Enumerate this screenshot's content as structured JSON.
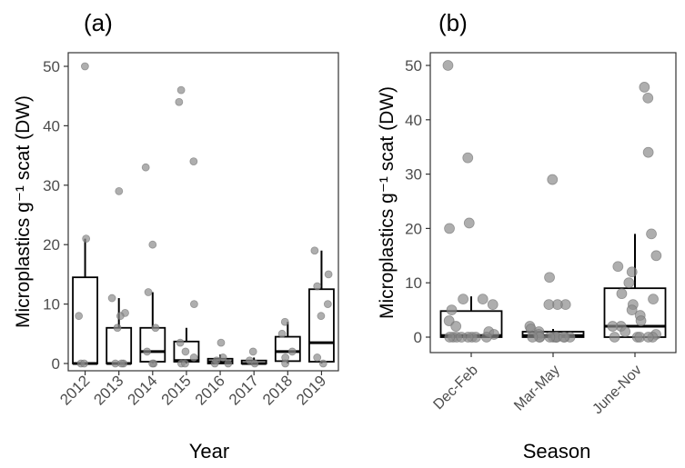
{
  "chart_data": [
    {
      "type": "box",
      "panel_label": "(a)",
      "xlabel": "Year",
      "ylabel": "Microplastics g⁻¹ scat (DW)",
      "ylim": [
        -2,
        53
      ],
      "yticks": [
        0,
        10,
        20,
        30,
        40,
        50
      ],
      "categories": [
        "2012",
        "2013",
        "2014",
        "2015",
        "2016",
        "2017",
        "2018",
        "2019"
      ],
      "boxes": [
        {
          "q1": 0,
          "median": 0,
          "q3": 14.5,
          "whisker_low": 0,
          "whisker_high": 21
        },
        {
          "q1": 0,
          "median": 0,
          "q3": 6,
          "whisker_low": 0,
          "whisker_high": 11
        },
        {
          "q1": 0.3,
          "median": 2,
          "q3": 6,
          "whisker_low": 0,
          "whisker_high": 12
        },
        {
          "q1": 0.3,
          "median": 0.5,
          "q3": 3.7,
          "whisker_low": 0,
          "whisker_high": 6
        },
        {
          "q1": 0,
          "median": 0.3,
          "q3": 0.8,
          "whisker_low": 0,
          "whisker_high": 1.5
        },
        {
          "q1": 0,
          "median": 0,
          "q3": 0.5,
          "whisker_low": 0,
          "whisker_high": 1
        },
        {
          "q1": 0.4,
          "median": 2,
          "q3": 4.5,
          "whisker_low": 0,
          "whisker_high": 7
        },
        {
          "q1": 0.3,
          "median": 3.5,
          "q3": 12.5,
          "whisker_low": 0,
          "whisker_high": 19
        }
      ],
      "points": [
        {
          "category": "2012",
          "y": 50
        },
        {
          "category": "2012",
          "y": 21
        },
        {
          "category": "2012",
          "y": 8
        },
        {
          "category": "2012",
          "y": 0
        },
        {
          "category": "2012",
          "y": 0
        },
        {
          "category": "2013",
          "y": 29
        },
        {
          "category": "2013",
          "y": 11
        },
        {
          "category": "2013",
          "y": 8.5
        },
        {
          "category": "2013",
          "y": 8
        },
        {
          "category": "2013",
          "y": 6
        },
        {
          "category": "2013",
          "y": 0
        },
        {
          "category": "2013",
          "y": 0
        },
        {
          "category": "2013",
          "y": 0
        },
        {
          "category": "2014",
          "y": 33
        },
        {
          "category": "2014",
          "y": 20
        },
        {
          "category": "2014",
          "y": 12
        },
        {
          "category": "2014",
          "y": 6
        },
        {
          "category": "2014",
          "y": 2
        },
        {
          "category": "2014",
          "y": 0
        },
        {
          "category": "2014",
          "y": 0
        },
        {
          "category": "2015",
          "y": 46
        },
        {
          "category": "2015",
          "y": 44
        },
        {
          "category": "2015",
          "y": 34
        },
        {
          "category": "2015",
          "y": 10
        },
        {
          "category": "2015",
          "y": 3.5
        },
        {
          "category": "2015",
          "y": 2
        },
        {
          "category": "2015",
          "y": 1
        },
        {
          "category": "2015",
          "y": 0
        },
        {
          "category": "2015",
          "y": 0
        },
        {
          "category": "2016",
          "y": 3.5
        },
        {
          "category": "2016",
          "y": 1
        },
        {
          "category": "2016",
          "y": 0.5
        },
        {
          "category": "2016",
          "y": 0
        },
        {
          "category": "2016",
          "y": 0
        },
        {
          "category": "2017",
          "y": 2
        },
        {
          "category": "2017",
          "y": 0.5
        },
        {
          "category": "2017",
          "y": 0
        },
        {
          "category": "2018",
          "y": 7
        },
        {
          "category": "2018",
          "y": 5
        },
        {
          "category": "2018",
          "y": 2
        },
        {
          "category": "2018",
          "y": 1
        },
        {
          "category": "2018",
          "y": 0
        },
        {
          "category": "2019",
          "y": 19
        },
        {
          "category": "2019",
          "y": 15
        },
        {
          "category": "2019",
          "y": 13
        },
        {
          "category": "2019",
          "y": 10
        },
        {
          "category": "2019",
          "y": 8
        },
        {
          "category": "2019",
          "y": 1
        },
        {
          "category": "2019",
          "y": 0
        }
      ]
    },
    {
      "type": "box",
      "panel_label": "(b)",
      "xlabel": "Season",
      "ylabel": "Microplastics g⁻¹ scat (DW)",
      "ylim": [
        -2,
        53
      ],
      "yticks": [
        0,
        10,
        20,
        30,
        40,
        50
      ],
      "categories": [
        "Dec-Feb",
        "Mar-May",
        "June-Nov"
      ],
      "boxes": [
        {
          "q1": 0,
          "median": 0.3,
          "q3": 4.8,
          "whisker_low": 0,
          "whisker_high": 7.5
        },
        {
          "q1": 0,
          "median": 0.3,
          "q3": 1,
          "whisker_low": 0,
          "whisker_high": 1.5
        },
        {
          "q1": 0,
          "median": 2,
          "q3": 9,
          "whisker_low": 0,
          "whisker_high": 19
        }
      ],
      "points": [
        {
          "category": "Dec-Feb",
          "y": 50
        },
        {
          "category": "Dec-Feb",
          "y": 33
        },
        {
          "category": "Dec-Feb",
          "y": 21
        },
        {
          "category": "Dec-Feb",
          "y": 20
        },
        {
          "category": "Dec-Feb",
          "y": 7
        },
        {
          "category": "Dec-Feb",
          "y": 7
        },
        {
          "category": "Dec-Feb",
          "y": 6
        },
        {
          "category": "Dec-Feb",
          "y": 5
        },
        {
          "category": "Dec-Feb",
          "y": 3
        },
        {
          "category": "Dec-Feb",
          "y": 2
        },
        {
          "category": "Dec-Feb",
          "y": 1
        },
        {
          "category": "Dec-Feb",
          "y": 0.5
        },
        {
          "category": "Dec-Feb",
          "y": 0
        },
        {
          "category": "Dec-Feb",
          "y": 0
        },
        {
          "category": "Dec-Feb",
          "y": 0
        },
        {
          "category": "Dec-Feb",
          "y": 0
        },
        {
          "category": "Dec-Feb",
          "y": 0
        },
        {
          "category": "Dec-Feb",
          "y": 0
        },
        {
          "category": "Dec-Feb",
          "y": 0
        },
        {
          "category": "Dec-Feb",
          "y": 0
        },
        {
          "category": "Mar-May",
          "y": 29
        },
        {
          "category": "Mar-May",
          "y": 11
        },
        {
          "category": "Mar-May",
          "y": 6
        },
        {
          "category": "Mar-May",
          "y": 6
        },
        {
          "category": "Mar-May",
          "y": 6
        },
        {
          "category": "Mar-May",
          "y": 2
        },
        {
          "category": "Mar-May",
          "y": 1.5
        },
        {
          "category": "Mar-May",
          "y": 1
        },
        {
          "category": "Mar-May",
          "y": 0.5
        },
        {
          "category": "Mar-May",
          "y": 0
        },
        {
          "category": "Mar-May",
          "y": 0
        },
        {
          "category": "Mar-May",
          "y": 0
        },
        {
          "category": "Mar-May",
          "y": 0
        },
        {
          "category": "Mar-May",
          "y": 0
        },
        {
          "category": "Mar-May",
          "y": 0
        },
        {
          "category": "Mar-May",
          "y": 0
        },
        {
          "category": "Mar-May",
          "y": 0
        },
        {
          "category": "Mar-May",
          "y": 0
        },
        {
          "category": "Mar-May",
          "y": 0
        },
        {
          "category": "Mar-May",
          "y": 0
        },
        {
          "category": "June-Nov",
          "y": 46
        },
        {
          "category": "June-Nov",
          "y": 44
        },
        {
          "category": "June-Nov",
          "y": 34
        },
        {
          "category": "June-Nov",
          "y": 19
        },
        {
          "category": "June-Nov",
          "y": 15
        },
        {
          "category": "June-Nov",
          "y": 13
        },
        {
          "category": "June-Nov",
          "y": 12
        },
        {
          "category": "June-Nov",
          "y": 10
        },
        {
          "category": "June-Nov",
          "y": 8
        },
        {
          "category": "June-Nov",
          "y": 7
        },
        {
          "category": "June-Nov",
          "y": 6
        },
        {
          "category": "June-Nov",
          "y": 5
        },
        {
          "category": "June-Nov",
          "y": 4
        },
        {
          "category": "June-Nov",
          "y": 3
        },
        {
          "category": "June-Nov",
          "y": 2
        },
        {
          "category": "June-Nov",
          "y": 2
        },
        {
          "category": "June-Nov",
          "y": 1
        },
        {
          "category": "June-Nov",
          "y": 0.5
        },
        {
          "category": "June-Nov",
          "y": 0
        },
        {
          "category": "June-Nov",
          "y": 0
        },
        {
          "category": "June-Nov",
          "y": 0
        },
        {
          "category": "June-Nov",
          "y": 0
        },
        {
          "category": "June-Nov",
          "y": 0
        }
      ]
    }
  ],
  "style": {
    "point_color": "#8c8c8c",
    "box_stroke": "#000000",
    "axis_color": "#333333",
    "grid": false
  }
}
